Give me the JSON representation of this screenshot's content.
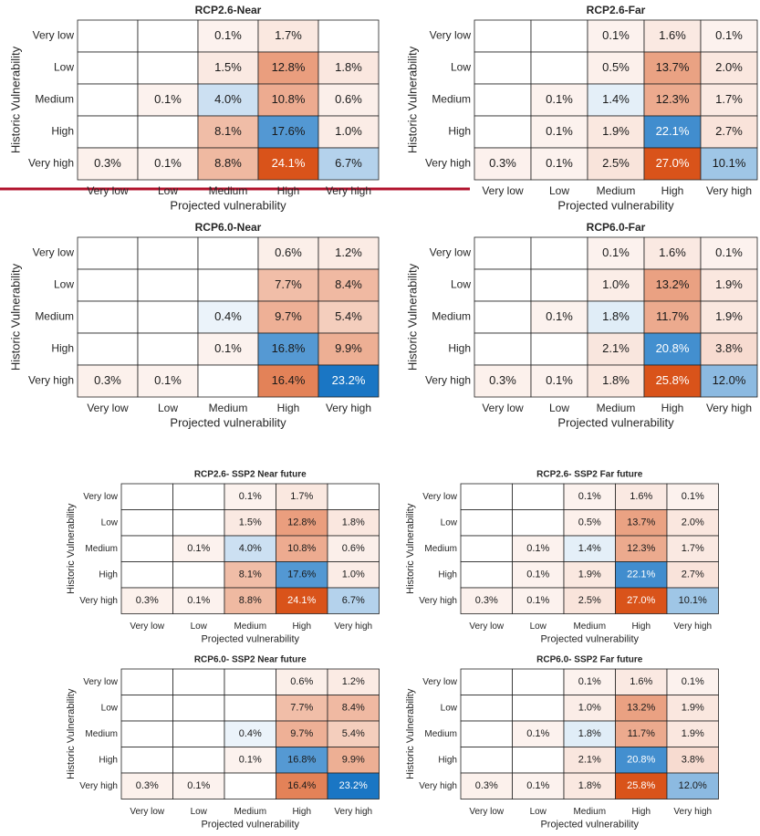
{
  "chart_data": [
    {
      "type": "heatmap",
      "title": "RCP2.6-Near",
      "xlabel": "Projected vulnerability",
      "ylabel": "Historic Vulnerability",
      "x_categories": [
        "Very low",
        "Low",
        "Medium",
        "High",
        "Very high"
      ],
      "y_categories": [
        "Very low",
        "Low",
        "Medium",
        "High",
        "Very high"
      ],
      "values": [
        [
          null,
          null,
          0.1,
          1.7,
          null
        ],
        [
          null,
          null,
          1.5,
          12.8,
          1.8
        ],
        [
          null,
          0.1,
          4.0,
          10.8,
          0.6
        ],
        [
          null,
          null,
          8.1,
          17.6,
          1.0
        ],
        [
          0.3,
          0.1,
          8.8,
          24.1,
          6.7
        ]
      ],
      "value_labels": [
        [
          null,
          null,
          "0.1%",
          "1.7%",
          null
        ],
        [
          null,
          null,
          "1.5%",
          "12.8%",
          "1.8%"
        ],
        [
          null,
          "0.1%",
          "4.0%",
          "10.8%",
          "0.6%"
        ],
        [
          null,
          null,
          "8.1%",
          "17.6%",
          "1.0%"
        ],
        [
          "0.3%",
          "0.1%",
          "8.8%",
          "24.1%",
          "6.7%"
        ]
      ],
      "diagonal_color": "#1a76c4",
      "offdiagonal_color": "#d9531a"
    },
    {
      "type": "heatmap",
      "title": "RCP2.6-Far",
      "xlabel": "Projected vulnerability",
      "ylabel": "Historic Vulnerability",
      "x_categories": [
        "Very low",
        "Low",
        "Medium",
        "High",
        "Very high"
      ],
      "y_categories": [
        "Very low",
        "Low",
        "Medium",
        "High",
        "Very high"
      ],
      "values": [
        [
          null,
          null,
          0.1,
          1.6,
          0.1
        ],
        [
          null,
          null,
          0.5,
          13.7,
          2.0
        ],
        [
          null,
          0.1,
          1.4,
          12.3,
          1.7
        ],
        [
          null,
          0.1,
          1.9,
          22.1,
          2.7
        ],
        [
          0.3,
          0.1,
          2.5,
          27.0,
          10.1
        ]
      ],
      "value_labels": [
        [
          null,
          null,
          "0.1%",
          "1.6%",
          "0.1%"
        ],
        [
          null,
          null,
          "0.5%",
          "13.7%",
          "2.0%"
        ],
        [
          null,
          "0.1%",
          "1.4%",
          "12.3%",
          "1.7%"
        ],
        [
          null,
          "0.1%",
          "1.9%",
          "22.1%",
          "2.7%"
        ],
        [
          "0.3%",
          "0.1%",
          "2.5%",
          "27.0%",
          "10.1%"
        ]
      ],
      "diagonal_color": "#1a76c4",
      "offdiagonal_color": "#d9531a"
    },
    {
      "type": "heatmap",
      "title": "RCP6.0-Near",
      "xlabel": "Projected vulnerability",
      "ylabel": "Historic Vulnerability",
      "x_categories": [
        "Very low",
        "Low",
        "Medium",
        "High",
        "Very high"
      ],
      "y_categories": [
        "Very low",
        "Low",
        "Medium",
        "High",
        "Very high"
      ],
      "values": [
        [
          null,
          null,
          null,
          0.6,
          1.2
        ],
        [
          null,
          null,
          null,
          7.7,
          8.4
        ],
        [
          null,
          null,
          0.4,
          9.7,
          5.4
        ],
        [
          null,
          null,
          0.1,
          16.8,
          9.9
        ],
        [
          0.3,
          0.1,
          null,
          16.4,
          23.2
        ]
      ],
      "value_labels": [
        [
          null,
          null,
          null,
          "0.6%",
          "1.2%"
        ],
        [
          null,
          null,
          null,
          "7.7%",
          "8.4%"
        ],
        [
          null,
          null,
          "0.4%",
          "9.7%",
          "5.4%"
        ],
        [
          null,
          null,
          "0.1%",
          "16.8%",
          "9.9%"
        ],
        [
          "0.3%",
          "0.1%",
          null,
          "16.4%",
          "23.2%"
        ]
      ],
      "diagonal_color": "#1a76c4",
      "offdiagonal_color": "#d9531a"
    },
    {
      "type": "heatmap",
      "title": "RCP6.0-Far",
      "xlabel": "Projected vulnerability",
      "ylabel": "Historic Vulnerability",
      "x_categories": [
        "Very low",
        "Low",
        "Medium",
        "High",
        "Very high"
      ],
      "y_categories": [
        "Very low",
        "Low",
        "Medium",
        "High",
        "Very high"
      ],
      "values": [
        [
          null,
          null,
          0.1,
          1.6,
          0.1
        ],
        [
          null,
          null,
          1.0,
          13.2,
          1.9
        ],
        [
          null,
          0.1,
          1.8,
          11.7,
          1.9
        ],
        [
          null,
          null,
          2.1,
          20.8,
          3.8
        ],
        [
          0.3,
          0.1,
          1.8,
          25.8,
          12.0
        ]
      ],
      "value_labels": [
        [
          null,
          null,
          "0.1%",
          "1.6%",
          "0.1%"
        ],
        [
          null,
          null,
          "1.0%",
          "13.2%",
          "1.9%"
        ],
        [
          null,
          "0.1%",
          "1.8%",
          "11.7%",
          "1.9%"
        ],
        [
          null,
          null,
          "2.1%",
          "20.8%",
          "3.8%"
        ],
        [
          "0.3%",
          "0.1%",
          "1.8%",
          "25.8%",
          "12.0%"
        ]
      ],
      "diagonal_color": "#1a76c4",
      "offdiagonal_color": "#d9531a"
    },
    {
      "type": "heatmap",
      "title": "RCP2.6- SSP2 Near future",
      "xlabel": "Projected vulnerability",
      "ylabel": "Historic Vulnerability",
      "x_categories": [
        "Very low",
        "Low",
        "Medium",
        "High",
        "Very high"
      ],
      "y_categories": [
        "Very low",
        "Low",
        "Medium",
        "High",
        "Very high"
      ],
      "values": [
        [
          null,
          null,
          0.1,
          1.7,
          null
        ],
        [
          null,
          null,
          1.5,
          12.8,
          1.8
        ],
        [
          null,
          0.1,
          4.0,
          10.8,
          0.6
        ],
        [
          null,
          null,
          8.1,
          17.6,
          1.0
        ],
        [
          0.3,
          0.1,
          8.8,
          24.1,
          6.7
        ]
      ],
      "value_labels": [
        [
          null,
          null,
          "0.1%",
          "1.7%",
          null
        ],
        [
          null,
          null,
          "1.5%",
          "12.8%",
          "1.8%"
        ],
        [
          null,
          "0.1%",
          "4.0%",
          "10.8%",
          "0.6%"
        ],
        [
          null,
          null,
          "8.1%",
          "17.6%",
          "1.0%"
        ],
        [
          "0.3%",
          "0.1%",
          "8.8%",
          "24.1%",
          "6.7%"
        ]
      ],
      "diagonal_color": "#1a76c4",
      "offdiagonal_color": "#d9531a"
    },
    {
      "type": "heatmap",
      "title": "RCP2.6- SSP2 Far future",
      "xlabel": "Projected vulnerability",
      "ylabel": "Historic Vulnerability",
      "x_categories": [
        "Very low",
        "Low",
        "Medium",
        "High",
        "Very high"
      ],
      "y_categories": [
        "Very low",
        "Low",
        "Medium",
        "High",
        "Very high"
      ],
      "values": [
        [
          null,
          null,
          0.1,
          1.6,
          0.1
        ],
        [
          null,
          null,
          0.5,
          13.7,
          2.0
        ],
        [
          null,
          0.1,
          1.4,
          12.3,
          1.7
        ],
        [
          null,
          0.1,
          1.9,
          22.1,
          2.7
        ],
        [
          0.3,
          0.1,
          2.5,
          27.0,
          10.1
        ]
      ],
      "value_labels": [
        [
          null,
          null,
          "0.1%",
          "1.6%",
          "0.1%"
        ],
        [
          null,
          null,
          "0.5%",
          "13.7%",
          "2.0%"
        ],
        [
          null,
          "0.1%",
          "1.4%",
          "12.3%",
          "1.7%"
        ],
        [
          null,
          "0.1%",
          "1.9%",
          "22.1%",
          "2.7%"
        ],
        [
          "0.3%",
          "0.1%",
          "2.5%",
          "27.0%",
          "10.1%"
        ]
      ],
      "diagonal_color": "#1a76c4",
      "offdiagonal_color": "#d9531a"
    },
    {
      "type": "heatmap",
      "title": "RCP6.0- SSP2 Near future",
      "xlabel": "Projected vulnerability",
      "ylabel": "Historic Vulnerability",
      "x_categories": [
        "Very low",
        "Low",
        "Medium",
        "High",
        "Very high"
      ],
      "y_categories": [
        "Very low",
        "Low",
        "Medium",
        "High",
        "Very high"
      ],
      "values": [
        [
          null,
          null,
          null,
          0.6,
          1.2
        ],
        [
          null,
          null,
          null,
          7.7,
          8.4
        ],
        [
          null,
          null,
          0.4,
          9.7,
          5.4
        ],
        [
          null,
          null,
          0.1,
          16.8,
          9.9
        ],
        [
          0.3,
          0.1,
          null,
          16.4,
          23.2
        ]
      ],
      "value_labels": [
        [
          null,
          null,
          null,
          "0.6%",
          "1.2%"
        ],
        [
          null,
          null,
          null,
          "7.7%",
          "8.4%"
        ],
        [
          null,
          null,
          "0.4%",
          "9.7%",
          "5.4%"
        ],
        [
          null,
          null,
          "0.1%",
          "16.8%",
          "9.9%"
        ],
        [
          "0.3%",
          "0.1%",
          null,
          "16.4%",
          "23.2%"
        ]
      ],
      "diagonal_color": "#1a76c4",
      "offdiagonal_color": "#d9531a"
    },
    {
      "type": "heatmap",
      "title": "RCP6.0- SSP2 Far future",
      "xlabel": "Projected vulnerability",
      "ylabel": "Historic Vulnerability",
      "x_categories": [
        "Very low",
        "Low",
        "Medium",
        "High",
        "Very high"
      ],
      "y_categories": [
        "Very low",
        "Low",
        "Medium",
        "High",
        "Very high"
      ],
      "values": [
        [
          null,
          null,
          0.1,
          1.6,
          0.1
        ],
        [
          null,
          null,
          1.0,
          13.2,
          1.9
        ],
        [
          null,
          0.1,
          1.8,
          11.7,
          1.9
        ],
        [
          null,
          null,
          2.1,
          20.8,
          3.8
        ],
        [
          0.3,
          0.1,
          1.8,
          25.8,
          12.0
        ]
      ],
      "value_labels": [
        [
          null,
          null,
          "0.1%",
          "1.6%",
          "0.1%"
        ],
        [
          null,
          null,
          "1.0%",
          "13.2%",
          "1.9%"
        ],
        [
          null,
          "0.1%",
          "1.8%",
          "11.7%",
          "1.9%"
        ],
        [
          null,
          null,
          "2.1%",
          "20.8%",
          "3.8%"
        ],
        [
          "0.3%",
          "0.1%",
          "1.8%",
          "25.8%",
          "12.0%"
        ]
      ],
      "diagonal_color": "#1a76c4",
      "offdiagonal_color": "#d9531a"
    }
  ]
}
